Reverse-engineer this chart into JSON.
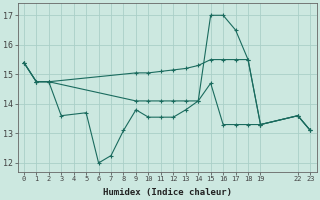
{
  "background_color": "#cce8e0",
  "grid_color": "#aacfc8",
  "line_color": "#1a6b5e",
  "xlabel": "Humidex (Indice chaleur)",
  "xlim": [
    -0.5,
    23.5
  ],
  "ylim": [
    11.7,
    17.4
  ],
  "yticks": [
    12,
    13,
    14,
    15,
    16,
    17
  ],
  "xticks": [
    0,
    1,
    2,
    3,
    4,
    5,
    6,
    7,
    8,
    9,
    10,
    11,
    12,
    13,
    14,
    15,
    16,
    17,
    18,
    19,
    22,
    23
  ],
  "xtick_labels": [
    "0",
    "1",
    "2",
    "3",
    "4",
    "5",
    "6",
    "7",
    "8",
    "9",
    "10",
    "11",
    "12",
    "13",
    "14",
    "15",
    "16",
    "17",
    "18",
    "19",
    "22",
    "23"
  ],
  "line1_x": [
    0,
    1,
    2,
    3,
    5,
    6,
    7,
    8,
    9,
    10,
    11,
    12,
    13,
    14,
    15,
    16,
    17,
    18,
    19,
    22,
    23
  ],
  "line1_y": [
    15.4,
    14.75,
    14.75,
    13.6,
    13.7,
    12.0,
    12.25,
    13.1,
    13.8,
    13.55,
    13.55,
    13.55,
    13.8,
    14.1,
    17.0,
    17.0,
    16.5,
    15.5,
    13.3,
    13.6,
    13.1
  ],
  "line2_x": [
    0,
    1,
    2,
    9,
    10,
    11,
    12,
    13,
    14,
    15,
    16,
    17,
    18,
    19,
    22,
    23
  ],
  "line2_y": [
    15.4,
    14.75,
    14.75,
    15.05,
    15.05,
    15.1,
    15.15,
    15.2,
    15.3,
    15.5,
    15.5,
    15.5,
    15.5,
    13.3,
    13.6,
    13.1
  ],
  "line3_x": [
    0,
    1,
    2,
    9,
    10,
    11,
    12,
    13,
    14,
    15,
    16,
    17,
    18,
    19,
    22,
    23
  ],
  "line3_y": [
    15.4,
    14.75,
    14.75,
    14.1,
    14.1,
    14.1,
    14.1,
    14.1,
    14.1,
    14.7,
    13.3,
    13.3,
    13.3,
    13.3,
    13.6,
    13.1
  ]
}
